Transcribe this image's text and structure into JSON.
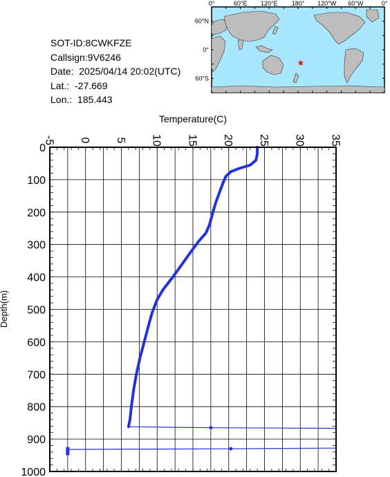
{
  "metadata": {
    "sot_id": "SOT-ID:8CWKFZE",
    "callsign": "Callsign:9V6246",
    "date": "Date:  2025/04/14 20:02(UTC)",
    "lat": "Lat.:  -27.669",
    "lon": "Lon.:  185.443"
  },
  "map": {
    "top_labels": [
      "0°",
      "60°E",
      "120°E",
      "180°",
      "120°W",
      "60°W",
      "0°"
    ],
    "side_labels": [
      "60°N",
      "0°",
      "60°S"
    ],
    "ocean_color": "#a9e7ff",
    "land_color": "#bdbdbd",
    "marker": {
      "lat": -27.669,
      "lon": 185.443,
      "color": "#ff0000",
      "symbol": "star"
    }
  },
  "chart_data": {
    "type": "line",
    "title": "",
    "xlabel": "Temperature(C)",
    "ylabel": "Depth(m)",
    "xlim": [
      -5,
      35
    ],
    "ylim": [
      1000,
      0
    ],
    "x_ticks": [
      "-5",
      "0",
      "5",
      "10",
      "15",
      "20",
      "25",
      "30",
      "35"
    ],
    "y_ticks": [
      "0",
      "100",
      "200",
      "300",
      "400",
      "500",
      "600",
      "700",
      "800",
      "900",
      "1000"
    ],
    "grid": true,
    "series_color": "#2233dd",
    "series": [
      {
        "name": "",
        "points": [
          [
            24.0,
            0
          ],
          [
            24.0,
            20
          ],
          [
            23.8,
            40
          ],
          [
            23.0,
            55
          ],
          [
            21.5,
            65
          ],
          [
            20.3,
            75
          ],
          [
            19.6,
            90
          ],
          [
            19.2,
            110
          ],
          [
            18.7,
            140
          ],
          [
            18.2,
            170
          ],
          [
            17.8,
            200
          ],
          [
            17.3,
            240
          ],
          [
            16.8,
            265
          ],
          [
            15.8,
            290
          ],
          [
            14.8,
            320
          ],
          [
            13.5,
            360
          ],
          [
            12.2,
            400
          ],
          [
            10.8,
            440
          ],
          [
            10.0,
            470
          ],
          [
            9.3,
            510
          ],
          [
            8.8,
            550
          ],
          [
            8.2,
            600
          ],
          [
            7.6,
            650
          ],
          [
            7.1,
            700
          ],
          [
            6.7,
            750
          ],
          [
            6.4,
            800
          ],
          [
            6.2,
            840
          ],
          [
            6.0,
            862
          ]
        ]
      }
    ],
    "spikes": [
      {
        "points": [
          [
            6.0,
            862
          ],
          [
            17.5,
            865
          ],
          [
            35.0,
            867
          ]
        ]
      },
      {
        "points": [
          [
            -2.5,
            932
          ],
          [
            20.3,
            930
          ],
          [
            35.0,
            928
          ]
        ]
      }
    ],
    "cluster": {
      "points": [
        [
          -2.5,
          925
        ],
        [
          -2.5,
          950
        ]
      ]
    }
  }
}
